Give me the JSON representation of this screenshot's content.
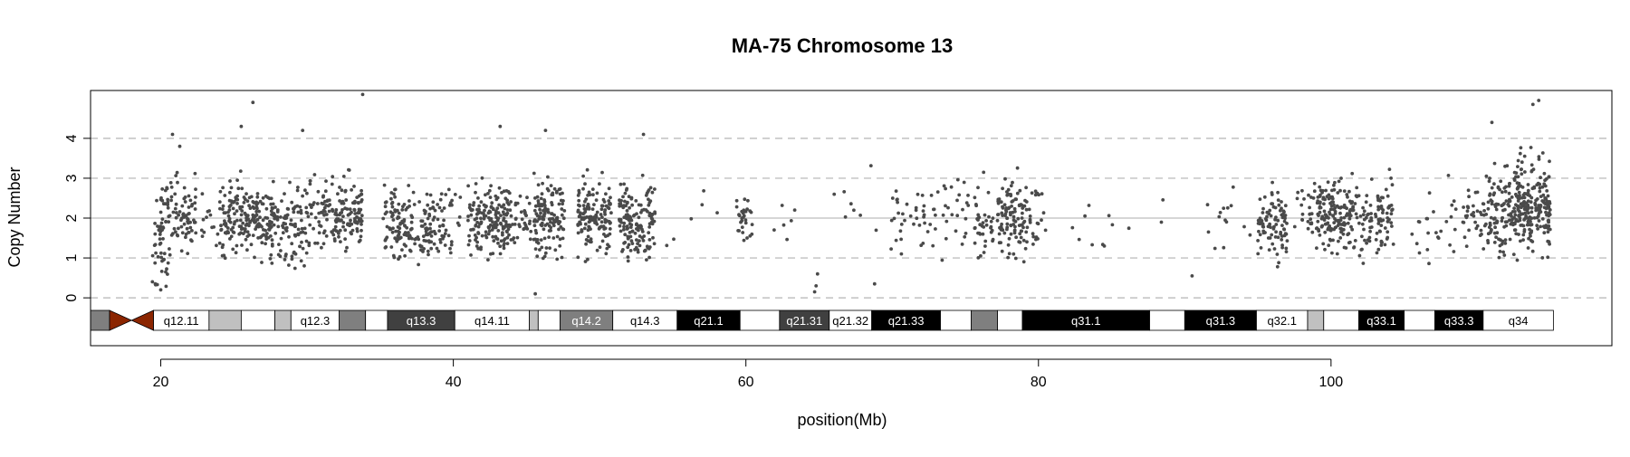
{
  "chart_data": {
    "type": "scatter",
    "title": "MA-75  Chromosome 13",
    "xlabel": "position(Mb)",
    "ylabel": "Copy Number",
    "xlim": [
      15.2,
      119.2
    ],
    "ylim": [
      -1.2,
      5.2
    ],
    "x_ticks": [
      20,
      40,
      60,
      80,
      100
    ],
    "y_ticks": [
      0,
      1,
      2,
      3,
      4
    ],
    "reference_lines": {
      "dashed": [
        0,
        1,
        3,
        4
      ],
      "solid": [
        2
      ]
    },
    "colors": {
      "points": "#4a4a4a",
      "centromere": "#8b2500",
      "grid_dashed": "#c0c0c0",
      "grid_solid": "#c8c8c8"
    },
    "ideogram": {
      "centromere": [
        16.5,
        19.5
      ],
      "bands": [
        {
          "name": "",
          "start": 15.2,
          "end": 16.5,
          "color": "#7f7f7f"
        },
        {
          "name": "q12.11",
          "start": 19.5,
          "end": 23.3,
          "color": "#ffffff"
        },
        {
          "name": "",
          "start": 23.3,
          "end": 25.5,
          "color": "#c0c0c0"
        },
        {
          "name": "",
          "start": 25.5,
          "end": 27.8,
          "color": "#ffffff"
        },
        {
          "name": "",
          "start": 27.8,
          "end": 28.9,
          "color": "#c0c0c0"
        },
        {
          "name": "q12.3",
          "start": 28.9,
          "end": 32.2,
          "color": "#ffffff"
        },
        {
          "name": "",
          "start": 32.2,
          "end": 34.0,
          "color": "#7f7f7f"
        },
        {
          "name": "",
          "start": 34.0,
          "end": 35.5,
          "color": "#ffffff"
        },
        {
          "name": "q13.3",
          "start": 35.5,
          "end": 40.1,
          "color": "#404040"
        },
        {
          "name": "q14.11",
          "start": 40.1,
          "end": 45.2,
          "color": "#ffffff"
        },
        {
          "name": "",
          "start": 45.2,
          "end": 45.8,
          "color": "#c0c0c0"
        },
        {
          "name": "",
          "start": 45.8,
          "end": 47.3,
          "color": "#ffffff"
        },
        {
          "name": "q14.2",
          "start": 47.3,
          "end": 50.9,
          "color": "#7f7f7f"
        },
        {
          "name": "q14.3",
          "start": 50.9,
          "end": 55.3,
          "color": "#ffffff"
        },
        {
          "name": "q21.1",
          "start": 55.3,
          "end": 59.6,
          "color": "#000000"
        },
        {
          "name": "",
          "start": 59.6,
          "end": 62.3,
          "color": "#ffffff"
        },
        {
          "name": "q21.31",
          "start": 62.3,
          "end": 65.7,
          "color": "#404040"
        },
        {
          "name": "q21.32",
          "start": 65.7,
          "end": 68.6,
          "color": "#ffffff"
        },
        {
          "name": "q21.33",
          "start": 68.6,
          "end": 73.3,
          "color": "#000000"
        },
        {
          "name": "",
          "start": 73.3,
          "end": 75.4,
          "color": "#ffffff"
        },
        {
          "name": "",
          "start": 75.4,
          "end": 77.2,
          "color": "#7f7f7f"
        },
        {
          "name": "",
          "start": 77.2,
          "end": 78.9,
          "color": "#ffffff"
        },
        {
          "name": "q31.1",
          "start": 78.9,
          "end": 87.6,
          "color": "#000000"
        },
        {
          "name": "",
          "start": 87.6,
          "end": 90.0,
          "color": "#ffffff"
        },
        {
          "name": "q31.3",
          "start": 90.0,
          "end": 94.9,
          "color": "#000000"
        },
        {
          "name": "q32.1",
          "start": 94.9,
          "end": 98.4,
          "color": "#ffffff"
        },
        {
          "name": "",
          "start": 98.4,
          "end": 99.5,
          "color": "#c0c0c0"
        },
        {
          "name": "",
          "start": 99.5,
          "end": 101.9,
          "color": "#ffffff"
        },
        {
          "name": "q33.1",
          "start": 101.9,
          "end": 105.0,
          "color": "#000000"
        },
        {
          "name": "",
          "start": 105.0,
          "end": 107.1,
          "color": "#ffffff"
        },
        {
          "name": "q33.3",
          "start": 107.1,
          "end": 110.4,
          "color": "#000000"
        },
        {
          "name": "q34",
          "start": 110.4,
          "end": 115.2,
          "color": "#ffffff"
        }
      ]
    },
    "clusters": [
      {
        "x": [
          19.3,
          20.6
        ],
        "center": 1.2,
        "sd": 0.55,
        "n": 40
      },
      {
        "x": [
          20.0,
          22.4
        ],
        "center": 2.1,
        "sd": 0.45,
        "n": 90
      },
      {
        "x": [
          22.8,
          24.2
        ],
        "center": 2.0,
        "sd": 0.4,
        "n": 20
      },
      {
        "x": [
          24.2,
          27.8
        ],
        "center": 2.0,
        "sd": 0.45,
        "n": 200
      },
      {
        "x": [
          27.8,
          30.0
        ],
        "center": 1.8,
        "sd": 0.5,
        "n": 90
      },
      {
        "x": [
          30.0,
          32.2
        ],
        "center": 2.0,
        "sd": 0.45,
        "n": 80
      },
      {
        "x": [
          32.2,
          33.8
        ],
        "center": 2.1,
        "sd": 0.45,
        "n": 90
      },
      {
        "x": [
          35.2,
          38.5
        ],
        "center": 1.8,
        "sd": 0.42,
        "n": 150
      },
      {
        "x": [
          38.5,
          40.5
        ],
        "center": 1.9,
        "sd": 0.4,
        "n": 50
      },
      {
        "x": [
          41.0,
          43.8
        ],
        "center": 2.0,
        "sd": 0.45,
        "n": 170
      },
      {
        "x": [
          43.8,
          45.3
        ],
        "center": 2.0,
        "sd": 0.4,
        "n": 40
      },
      {
        "x": [
          45.5,
          47.6
        ],
        "center": 2.0,
        "sd": 0.5,
        "n": 130
      },
      {
        "x": [
          48.5,
          50.8
        ],
        "center": 2.0,
        "sd": 0.42,
        "n": 140
      },
      {
        "x": [
          51.3,
          53.8
        ],
        "center": 2.0,
        "sd": 0.45,
        "n": 150
      },
      {
        "x": [
          54.0,
          58.5
        ],
        "center": 1.9,
        "sd": 0.4,
        "n": 6
      },
      {
        "x": [
          59.3,
          60.5
        ],
        "center": 1.9,
        "sd": 0.4,
        "n": 30
      },
      {
        "x": [
          61.5,
          64.0
        ],
        "center": 2.0,
        "sd": 0.6,
        "n": 6
      },
      {
        "x": [
          66.0,
          69.0
        ],
        "center": 2.1,
        "sd": 0.5,
        "n": 8
      },
      {
        "x": [
          69.8,
          73.0
        ],
        "center": 1.9,
        "sd": 0.45,
        "n": 40
      },
      {
        "x": [
          73.0,
          75.2
        ],
        "center": 2.1,
        "sd": 0.45,
        "n": 25
      },
      {
        "x": [
          75.6,
          76.9
        ],
        "center": 1.9,
        "sd": 0.45,
        "n": 40
      },
      {
        "x": [
          77.2,
          79.2
        ],
        "center": 2.0,
        "sd": 0.45,
        "n": 110
      },
      {
        "x": [
          79.2,
          80.5
        ],
        "center": 2.0,
        "sd": 0.4,
        "n": 25
      },
      {
        "x": [
          81.0,
          89.5
        ],
        "center": 1.8,
        "sd": 0.4,
        "n": 12
      },
      {
        "x": [
          91.5,
          94.5
        ],
        "center": 1.8,
        "sd": 0.5,
        "n": 14
      },
      {
        "x": [
          95.0,
          97.0
        ],
        "center": 1.9,
        "sd": 0.45,
        "n": 90
      },
      {
        "x": [
          97.5,
          99.0
        ],
        "center": 2.1,
        "sd": 0.45,
        "n": 25
      },
      {
        "x": [
          99.0,
          101.5
        ],
        "center": 2.1,
        "sd": 0.45,
        "n": 160
      },
      {
        "x": [
          101.5,
          103.5
        ],
        "center": 1.9,
        "sd": 0.4,
        "n": 60
      },
      {
        "x": [
          103.2,
          104.3
        ],
        "center": 2.1,
        "sd": 0.45,
        "n": 45
      },
      {
        "x": [
          105.5,
          109.0
        ],
        "center": 1.8,
        "sd": 0.45,
        "n": 25
      },
      {
        "x": [
          109.0,
          110.5
        ],
        "center": 2.0,
        "sd": 0.45,
        "n": 35
      },
      {
        "x": [
          110.5,
          112.5
        ],
        "center": 2.2,
        "sd": 0.55,
        "n": 100
      },
      {
        "x": [
          112.5,
          115.0
        ],
        "center": 2.3,
        "sd": 0.6,
        "n": 230
      }
    ],
    "outliers": [
      {
        "x": 20.8,
        "y": 4.1
      },
      {
        "x": 21.3,
        "y": 3.8
      },
      {
        "x": 25.5,
        "y": 4.3
      },
      {
        "x": 26.3,
        "y": 4.9
      },
      {
        "x": 29.7,
        "y": 4.2
      },
      {
        "x": 33.8,
        "y": 5.1
      },
      {
        "x": 43.2,
        "y": 4.3
      },
      {
        "x": 46.3,
        "y": 4.2
      },
      {
        "x": 53.0,
        "y": 4.1
      },
      {
        "x": 64.7,
        "y": 0.15
      },
      {
        "x": 64.8,
        "y": 0.3
      },
      {
        "x": 64.9,
        "y": 0.6
      },
      {
        "x": 68.8,
        "y": 0.35
      },
      {
        "x": 90.5,
        "y": 0.55
      },
      {
        "x": 111.0,
        "y": 4.4
      },
      {
        "x": 113.8,
        "y": 4.85
      },
      {
        "x": 114.2,
        "y": 4.95
      },
      {
        "x": 20.0,
        "y": 0.2
      },
      {
        "x": 45.6,
        "y": 0.1
      }
    ]
  }
}
